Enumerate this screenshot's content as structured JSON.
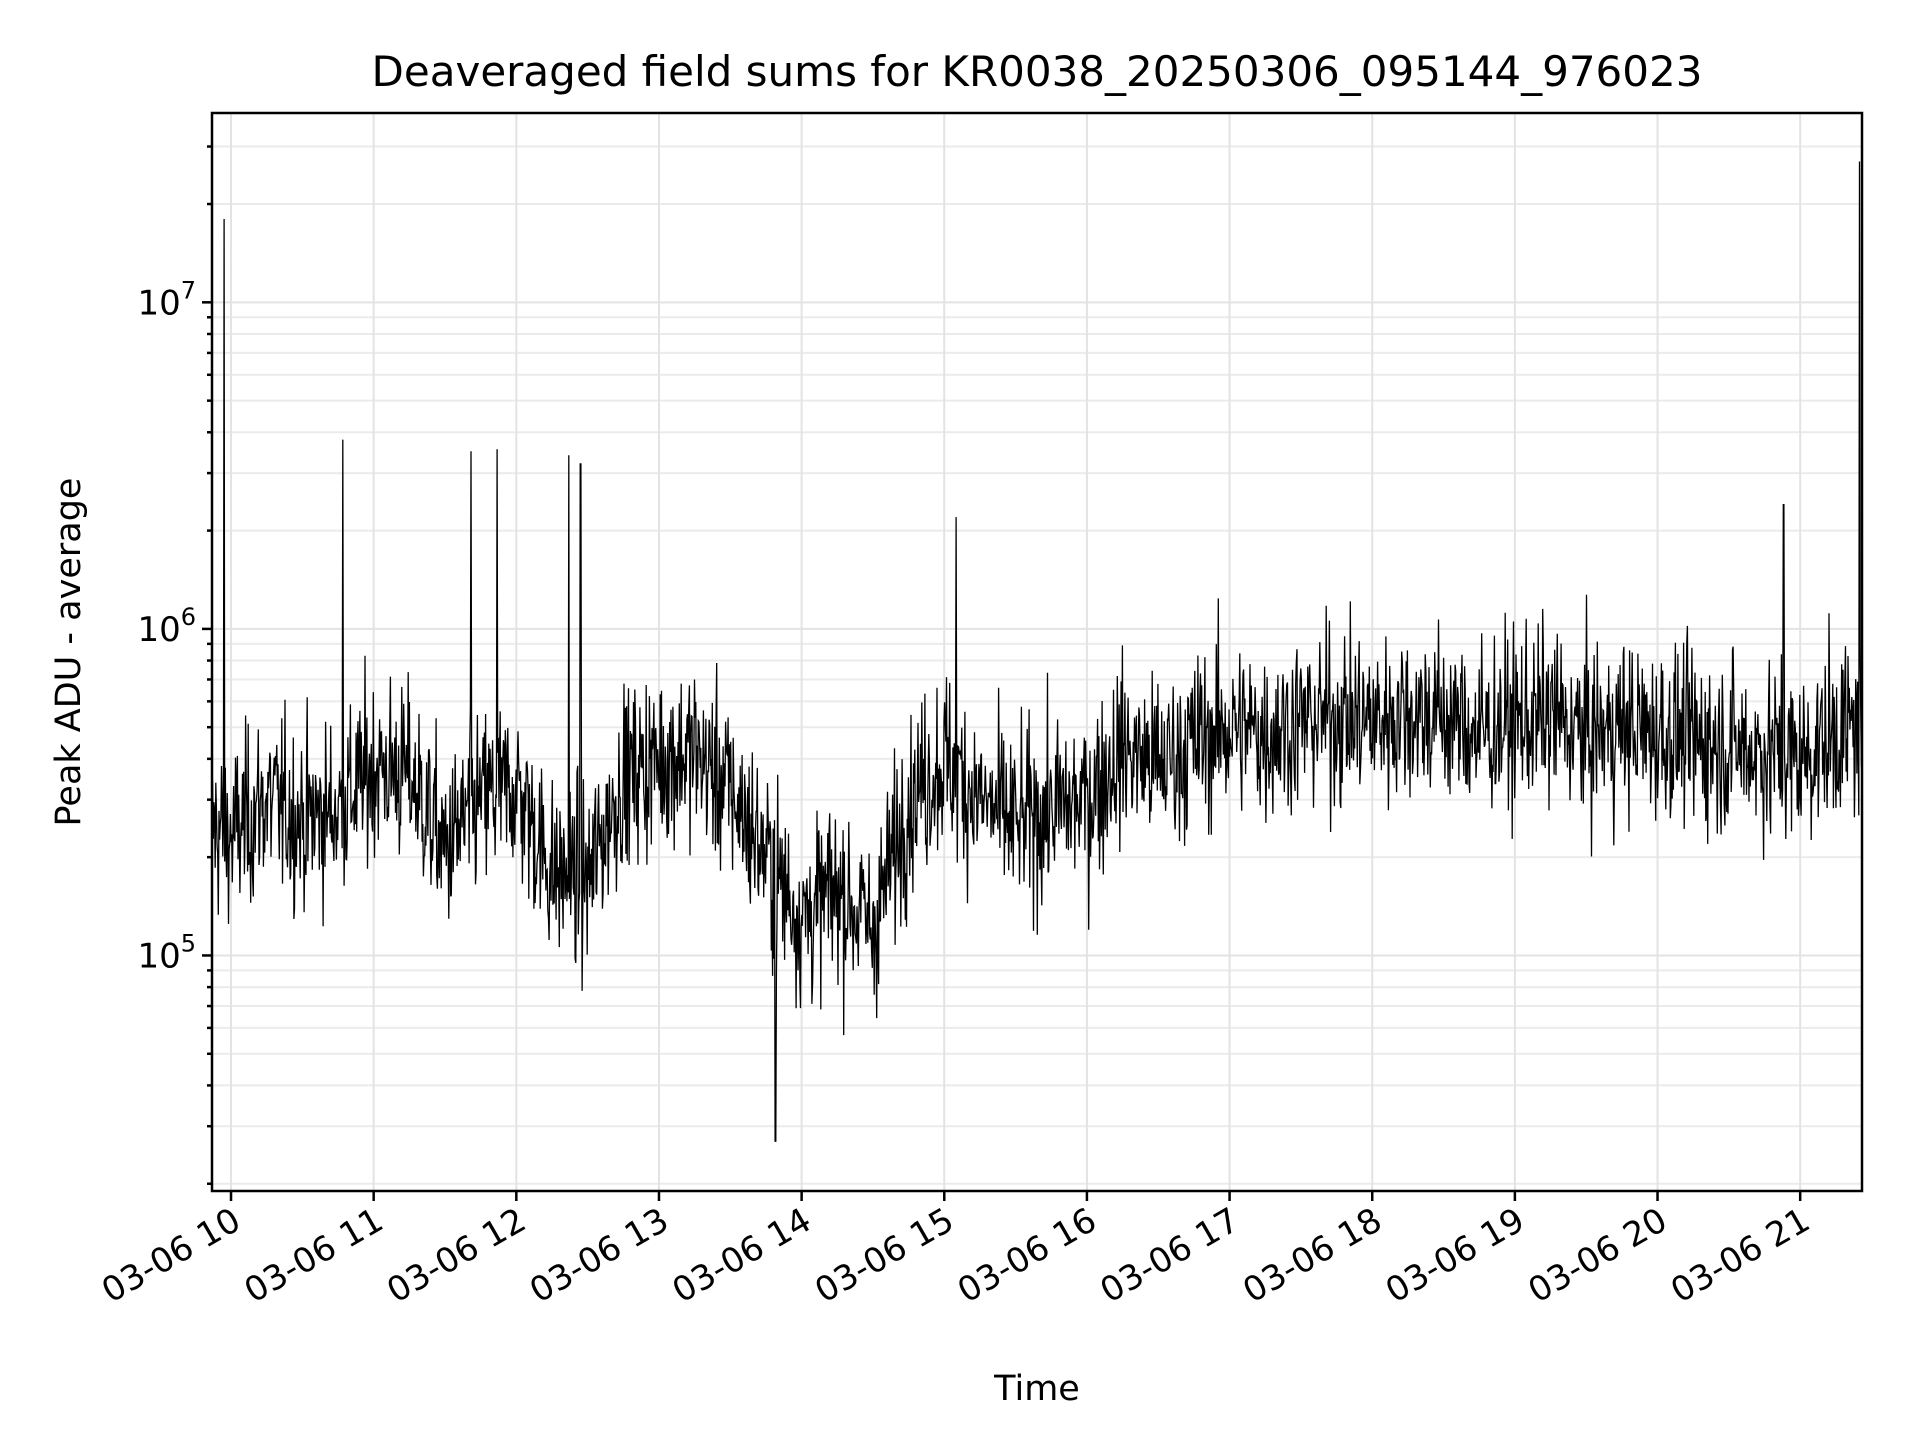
{
  "chart_data": {
    "type": "line",
    "title": "Deaveraged field sums for KR0038_20250306_095144_976023",
    "xlabel": "Time",
    "ylabel": "Peak ADU - average",
    "yscale": "log",
    "ylim": [
      19000,
      38000000
    ],
    "xlim": [
      "03-06 09:52",
      "03-06 21:26"
    ],
    "grid": "major and minor",
    "series_color": "#000000",
    "x_ticks": [
      "03-06 10",
      "03-06 11",
      "03-06 12",
      "03-06 13",
      "03-06 14",
      "03-06 15",
      "03-06 16",
      "03-06 17",
      "03-06 18",
      "03-06 19",
      "03-06 20",
      "03-06 21"
    ],
    "y_ticks": [
      {
        "value": 100000,
        "base": "10",
        "exp": "5"
      },
      {
        "value": 1000000,
        "base": "10",
        "exp": "6"
      },
      {
        "value": 10000000,
        "base": "10",
        "exp": "7"
      }
    ],
    "series": [
      {
        "x": [
          "03-06 09:52",
          "03-06 10:00",
          "03-06 10:15",
          "03-06 10:30",
          "03-06 10:45",
          "03-06 11:00",
          "03-06 11:15",
          "03-06 11:30",
          "03-06 11:45",
          "03-06 12:00",
          "03-06 12:15",
          "03-06 12:30",
          "03-06 12:45",
          "03-06 13:00",
          "03-06 13:15",
          "03-06 13:30",
          "03-06 13:45",
          "03-06 14:00",
          "03-06 14:15",
          "03-06 14:30",
          "03-06 14:45",
          "03-06 15:00",
          "03-06 15:15",
          "03-06 15:30",
          "03-06 15:45",
          "03-06 16:00",
          "03-06 16:15",
          "03-06 16:30",
          "03-06 16:45",
          "03-06 17:00",
          "03-06 17:15",
          "03-06 17:30",
          "03-06 17:45",
          "03-06 18:00",
          "03-06 18:15",
          "03-06 18:30",
          "03-06 18:45",
          "03-06 19:00",
          "03-06 19:15",
          "03-06 19:30",
          "03-06 19:45",
          "03-06 20:00",
          "03-06 20:15",
          "03-06 20:30",
          "03-06 20:45",
          "03-06 21:00",
          "03-06 21:15",
          "03-06 21:26"
        ],
        "y": [
          250000,
          230000,
          300000,
          260000,
          280000,
          380000,
          360000,
          210000,
          300000,
          330000,
          180000,
          170000,
          350000,
          400000,
          420000,
          320000,
          200000,
          130000,
          160000,
          120000,
          300000,
          400000,
          300000,
          250000,
          280000,
          300000,
          430000,
          380000,
          450000,
          500000,
          480000,
          520000,
          540000,
          520000,
          560000,
          540000,
          480000,
          520000,
          540000,
          470000,
          500000,
          480000,
          460000,
          440000,
          420000,
          400000,
          480000,
          500000
        ]
      }
    ],
    "spikes": [
      {
        "x": "03-06 09:57",
        "y": 18000000
      },
      {
        "x": "03-06 10:47",
        "y": 3800000
      },
      {
        "x": "03-06 11:41",
        "y": 3500000
      },
      {
        "x": "03-06 11:52",
        "y": 3550000
      },
      {
        "x": "03-06 12:22",
        "y": 3400000
      },
      {
        "x": "03-06 12:27",
        "y": 3200000
      },
      {
        "x": "03-06 13:49",
        "y": 27000
      },
      {
        "x": "03-06 15:05",
        "y": 2200000
      },
      {
        "x": "03-06 20:53",
        "y": 2400000
      },
      {
        "x": "03-06 21:25",
        "y": 27000000
      }
    ]
  }
}
